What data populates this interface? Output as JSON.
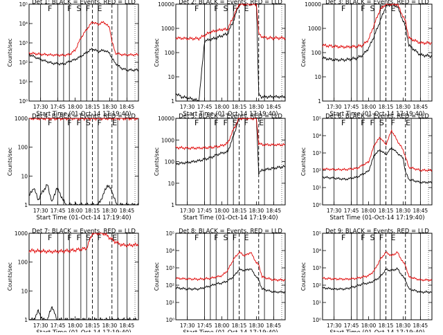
{
  "common": {
    "x_ticks": [
      "17:30",
      "17:45",
      "18:00",
      "18:15",
      "18:30",
      "18:45"
    ],
    "x_tick_minutes": [
      0,
      15,
      30,
      45,
      60,
      75
    ],
    "xlim_minutes": [
      -10,
      85
    ],
    "xlabel": "Start Time (01-Oct-14 17:19:40)",
    "ylabel": "Counts/sec",
    "solid_line_minutes": [
      0,
      15,
      20,
      25,
      35,
      40,
      50,
      67,
      75
    ],
    "dashed_line_minutes": [
      45,
      62
    ],
    "colors": {
      "events": "#000000",
      "lld": "#e00000",
      "axes": "#000000"
    }
  },
  "chart_data": [
    {
      "type": "line",
      "title": "Det 1: BLACK = Events, RED = LLD",
      "ylog": true,
      "ylim": [
        1,
        100000
      ],
      "y_ticks": [
        "10⁰",
        "10¹",
        "10²",
        "10³",
        "10⁴",
        "10⁵"
      ],
      "markers": [
        "F",
        "F",
        "S",
        "F",
        "E"
      ],
      "series": [
        {
          "name": "BLACK = Events",
          "x": [
            -10,
            0,
            10,
            20,
            25,
            30,
            35,
            40,
            45,
            50,
            55,
            60,
            62,
            65,
            70,
            75,
            85
          ],
          "y": [
            250,
            140,
            90,
            80,
            110,
            140,
            200,
            320,
            500,
            360,
            420,
            300,
            160,
            90,
            50,
            40,
            40
          ]
        },
        {
          "name": "RED = LLD",
          "x": [
            -10,
            0,
            10,
            20,
            25,
            30,
            35,
            40,
            45,
            50,
            55,
            60,
            62,
            65,
            70,
            75,
            85
          ],
          "y": [
            300,
            260,
            240,
            230,
            250,
            420,
            1800,
            5000,
            12000,
            9000,
            12000,
            6000,
            1200,
            300,
            250,
            240,
            250
          ]
        }
      ]
    },
    {
      "type": "line",
      "title": "Det 2: BLACK = Events, RED = LLD",
      "ylog": true,
      "ylim": [
        1,
        10000
      ],
      "y_ticks": [
        "1",
        "10",
        "100",
        "1000",
        "10000"
      ],
      "markers": [
        "F",
        "F",
        "S",
        "F",
        "E"
      ],
      "series": [
        {
          "name": "BLACK = Events",
          "x": [
            -10,
            -5,
            5,
            10,
            15,
            20,
            25,
            30,
            35,
            40,
            45,
            50,
            55,
            60,
            62,
            64,
            70,
            75,
            85
          ],
          "y": [
            2,
            1.5,
            1.2,
            1,
            300,
            350,
            400,
            500,
            600,
            2000,
            10000,
            10000,
            10000,
            10000,
            2,
            1.5,
            1.5,
            1.5,
            1.5
          ]
        },
        {
          "name": "RED = LLD",
          "x": [
            -10,
            0,
            10,
            20,
            25,
            30,
            35,
            40,
            45,
            50,
            55,
            60,
            62,
            65,
            70,
            75,
            85
          ],
          "y": [
            400,
            380,
            380,
            700,
            800,
            900,
            900,
            3000,
            10000,
            10000,
            10000,
            10000,
            600,
            450,
            400,
            400,
            400
          ]
        }
      ]
    },
    {
      "type": "line",
      "title": "Det 3: BLACK = Events, RED = LLD",
      "ylog": true,
      "ylim": [
        1,
        10000
      ],
      "y_ticks": [
        "1",
        "10",
        "100",
        "1000",
        "10000"
      ],
      "markers": [
        "F",
        "F",
        "S",
        "F",
        "E"
      ],
      "series": [
        {
          "name": "BLACK = Events",
          "x": [
            -10,
            0,
            10,
            20,
            25,
            30,
            35,
            40,
            45,
            50,
            55,
            60,
            62,
            65,
            75,
            85
          ],
          "y": [
            60,
            50,
            50,
            60,
            80,
            150,
            500,
            2000,
            8000,
            10000,
            8000,
            2000,
            1200,
            200,
            80,
            70
          ]
        },
        {
          "name": "RED = LLD",
          "x": [
            -10,
            0,
            10,
            20,
            25,
            30,
            35,
            40,
            45,
            50,
            55,
            60,
            62,
            65,
            75,
            85
          ],
          "y": [
            200,
            180,
            170,
            180,
            200,
            350,
            1500,
            6000,
            10000,
            10000,
            10000,
            3000,
            2000,
            400,
            250,
            250
          ]
        }
      ]
    },
    {
      "type": "line",
      "title": "Det 4: BLACK = Events, RED = LLD",
      "ylog": true,
      "ylim": [
        1,
        1000
      ],
      "y_ticks": [
        "1",
        "10",
        "100",
        "1000"
      ],
      "markers": [
        "F",
        "F",
        "F",
        "S",
        "F",
        "E"
      ],
      "series": [
        {
          "name": "BLACK = Events",
          "x": [
            -10,
            -6,
            -2,
            2,
            6,
            10,
            14,
            18,
            22,
            26,
            30,
            34,
            38,
            42,
            46,
            50,
            54,
            58,
            62,
            66,
            70,
            74,
            78,
            85
          ],
          "y": [
            2,
            4,
            1.5,
            3,
            5,
            1.2,
            4,
            2,
            1,
            1,
            1,
            1,
            1,
            1,
            1,
            1,
            2,
            5,
            3,
            1,
            1,
            1,
            1,
            1
          ]
        },
        {
          "name": "RED = LLD",
          "x": [
            -10,
            85
          ],
          "y": [
            1000,
            1000
          ]
        }
      ]
    },
    {
      "type": "line",
      "title": "Det 5: BLACK = Events, RED = LLD",
      "ylog": true,
      "ylim": [
        1,
        10000
      ],
      "y_ticks": [
        "1",
        "10",
        "100",
        "1000",
        "10000"
      ],
      "markers": [
        "F",
        "F",
        "F",
        "S",
        "F",
        "E"
      ],
      "series": [
        {
          "name": "BLACK = Events",
          "x": [
            -10,
            0,
            10,
            20,
            25,
            30,
            35,
            40,
            45,
            50,
            55,
            60,
            62,
            65,
            75,
            85
          ],
          "y": [
            80,
            90,
            110,
            150,
            200,
            250,
            280,
            1500,
            10000,
            10000,
            10000,
            10000,
            30,
            40,
            50,
            60
          ]
        },
        {
          "name": "RED = LLD",
          "x": [
            -10,
            0,
            10,
            20,
            25,
            30,
            35,
            40,
            45,
            50,
            55,
            60,
            62,
            65,
            75,
            85
          ],
          "y": [
            450,
            420,
            420,
            450,
            480,
            550,
            700,
            3000,
            10000,
            10000,
            10000,
            10000,
            700,
            600,
            600,
            600
          ]
        }
      ]
    },
    {
      "type": "line",
      "title": "Det 6: BLACK = Events, RED = LLD",
      "ylog": true,
      "ylim": [
        1,
        100000
      ],
      "y_ticks": [
        "10⁰",
        "10¹",
        "10²",
        "10³",
        "10⁴",
        "10⁵"
      ],
      "markers": [
        "F",
        "F",
        "F",
        "S",
        "F",
        "E"
      ],
      "series": [
        {
          "name": "BLACK = Events",
          "x": [
            -10,
            0,
            10,
            20,
            25,
            30,
            35,
            40,
            45,
            50,
            55,
            60,
            62,
            65,
            75,
            85
          ],
          "y": [
            40,
            35,
            30,
            40,
            60,
            90,
            800,
            1500,
            800,
            2000,
            1000,
            500,
            80,
            30,
            20,
            20
          ]
        },
        {
          "name": "RED = LLD",
          "x": [
            -10,
            0,
            10,
            20,
            25,
            30,
            35,
            40,
            45,
            50,
            55,
            60,
            62,
            65,
            75,
            85
          ],
          "y": [
            120,
            110,
            110,
            130,
            200,
            300,
            3000,
            8000,
            3000,
            20000,
            5000,
            1500,
            600,
            150,
            100,
            100
          ]
        }
      ]
    },
    {
      "type": "line",
      "title": "Det 7: BLACK = Events, RED = LLD",
      "ylog": true,
      "ylim": [
        1,
        1000
      ],
      "y_ticks": [
        "1",
        "10",
        "100",
        "1000"
      ],
      "markers": [
        "F",
        "F",
        "F",
        "S",
        "F",
        "E"
      ],
      "series": [
        {
          "name": "BLACK = Events",
          "x": [
            -10,
            -6,
            -2,
            2,
            6,
            10,
            14,
            18,
            22,
            26,
            30,
            34,
            38,
            42,
            46,
            50,
            54,
            58,
            62,
            66,
            70,
            74,
            78,
            85
          ],
          "y": [
            1,
            1,
            2,
            1,
            1,
            3,
            1,
            1,
            1,
            1,
            1,
            1,
            1,
            1,
            1,
            1,
            1,
            1,
            1,
            1,
            1,
            1,
            1,
            1
          ]
        },
        {
          "name": "RED = LLD",
          "x": [
            -10,
            0,
            10,
            20,
            30,
            35,
            40,
            45,
            50,
            55,
            60,
            62,
            65,
            70,
            75,
            85
          ],
          "y": [
            250,
            240,
            230,
            240,
            260,
            280,
            300,
            1000,
            1000,
            1000,
            700,
            600,
            500,
            400,
            380,
            400
          ]
        }
      ]
    },
    {
      "type": "line",
      "title": "Det 8: BLACK = Events, RED = LLD",
      "ylog": true,
      "ylim": [
        1,
        100000
      ],
      "y_ticks": [
        "10⁰",
        "10¹",
        "10²",
        "10³",
        "10⁴",
        "10⁵"
      ],
      "markers": [
        "F",
        "F",
        "S",
        "F",
        "E"
      ],
      "series": [
        {
          "name": "BLACK = Events",
          "x": [
            -10,
            0,
            10,
            20,
            25,
            30,
            35,
            40,
            45,
            50,
            55,
            60,
            62,
            65,
            75,
            85
          ],
          "y": [
            70,
            60,
            60,
            90,
            120,
            130,
            180,
            300,
            800,
            700,
            900,
            300,
            200,
            60,
            40,
            40
          ]
        },
        {
          "name": "RED = LLD",
          "x": [
            -10,
            0,
            10,
            20,
            25,
            30,
            35,
            40,
            45,
            50,
            55,
            60,
            62,
            65,
            75,
            85
          ],
          "y": [
            250,
            230,
            220,
            250,
            300,
            350,
            700,
            3000,
            8000,
            5000,
            8000,
            2000,
            1500,
            300,
            200,
            200
          ]
        }
      ]
    },
    {
      "type": "line",
      "title": "Det 9: BLACK = Events, RED = LLD",
      "ylog": true,
      "ylim": [
        1,
        100000
      ],
      "y_ticks": [
        "10⁰",
        "10¹",
        "10²",
        "10³",
        "10⁴",
        "10⁵"
      ],
      "markers": [
        "F",
        "F",
        "S",
        "F",
        "E"
      ],
      "series": [
        {
          "name": "BLACK = Events",
          "x": [
            -10,
            0,
            10,
            20,
            25,
            30,
            35,
            40,
            45,
            50,
            55,
            60,
            62,
            65,
            75,
            85
          ],
          "y": [
            70,
            60,
            60,
            90,
            120,
            130,
            180,
            300,
            800,
            700,
            900,
            300,
            200,
            60,
            40,
            40
          ]
        },
        {
          "name": "RED = LLD",
          "x": [
            -10,
            0,
            10,
            20,
            25,
            30,
            35,
            40,
            45,
            50,
            55,
            60,
            62,
            65,
            75,
            85
          ],
          "y": [
            250,
            230,
            220,
            250,
            300,
            350,
            700,
            3000,
            8000,
            5000,
            8000,
            2000,
            1500,
            300,
            200,
            200
          ]
        }
      ]
    }
  ]
}
